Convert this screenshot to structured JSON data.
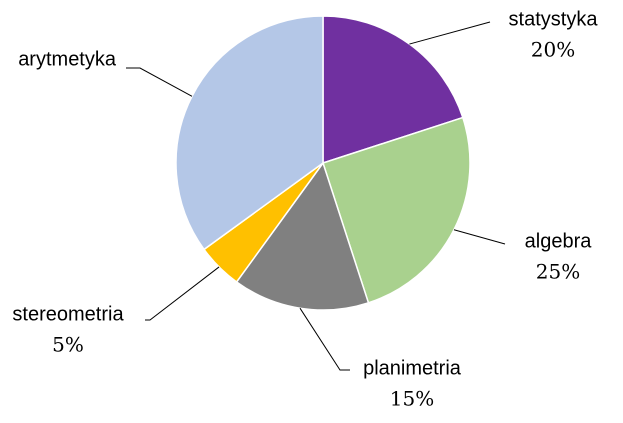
{
  "chart_data": {
    "type": "pie",
    "categories": [
      "statystyka",
      "algebra",
      "planimetria",
      "stereometria",
      "arytmetyka"
    ],
    "values": [
      20,
      25,
      15,
      5,
      35
    ],
    "value_labels": [
      "20%",
      "25%",
      "15%",
      "5%",
      null
    ],
    "colors": [
      "#7030a0",
      "#a9d18e",
      "#808080",
      "#ffc000",
      "#b4c7e7"
    ]
  }
}
